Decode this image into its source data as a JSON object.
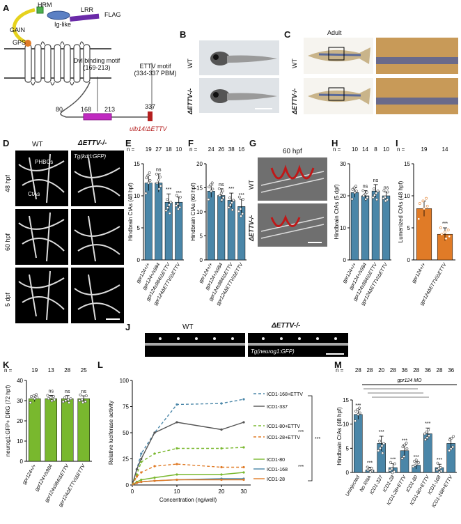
{
  "panels": {
    "A": "A",
    "B": "B",
    "C": "C",
    "D": "D",
    "E": "E",
    "F": "F",
    "G": "G",
    "H": "H",
    "I": "I",
    "J": "J",
    "K": "K",
    "L": "L",
    "M": "M"
  },
  "panel_a": {
    "hrm": "HRM",
    "lrr": "LRR",
    "ig_like": "Ig-like",
    "flag": "FLAG",
    "gain": "GAIN",
    "gps": "GPS",
    "dvl_motif": "Dvl binding motif",
    "dvl_range": "(169-213)",
    "ettv_motif": "ETTV motif",
    "ettv_range": "(334-337 PBM)",
    "pos_80": "80",
    "pos_168": "168",
    "pos_213": "213",
    "pos_337": "337",
    "allele": "ulb14/ΔETTV"
  },
  "panel_b": {
    "wt": "WT",
    "mut": "ΔETTV-/-"
  },
  "panel_c": {
    "adult": "Adult",
    "wt": "WT",
    "mut": "ΔETTV-/-"
  },
  "panel_d": {
    "wt": "WT",
    "mut": "ΔETTV-/-",
    "tg": "Tg(kdrl:GFP)",
    "phbcs": "PHBCs",
    "ctas": "CtAs",
    "rows": [
      "48 hpf",
      "60 hpf",
      "5 dpf"
    ]
  },
  "panel_g": {
    "title": "60 hpf",
    "wt": "WT",
    "mut": "ΔETTV-/-"
  },
  "panel_j": {
    "wt": "WT",
    "mut": "ΔETTV-/-",
    "tg": "Tg(neurog1:GFP)"
  },
  "colors": {
    "blue": "#4a86a8",
    "green": "#79b82e",
    "orange": "#e07b27",
    "gray": "#555555",
    "red": "#b51f1f",
    "purple": "#6a2aa8",
    "magenta": "#c02ac0"
  },
  "chart_data": [
    {
      "id": "E",
      "type": "bar",
      "ylabel": "Hindbrain CtAs (48 hpf)",
      "ylim": [
        0,
        15
      ],
      "yticks": [
        0,
        5,
        10,
        15
      ],
      "categories": [
        "gpr124+/+",
        "gpr124+/s984",
        "gpr124s984/ΔETTV",
        "gpr124ΔETTV/ΔETTV"
      ],
      "n": [
        "19",
        "27",
        "18",
        "10"
      ],
      "values": [
        12,
        12,
        9,
        9
      ],
      "errors": [
        1.2,
        1.4,
        1.3,
        0.8
      ],
      "sig": [
        "",
        "ns",
        "***",
        "***"
      ]
    },
    {
      "id": "F",
      "type": "bar",
      "ylabel": "Hindbrain CtAs (60 hpf)",
      "ylim": [
        0,
        20
      ],
      "yticks": [
        0,
        5,
        10,
        15,
        20
      ],
      "categories": [
        "gpr124+/+",
        "gpr124+/s984",
        "gpr124s984/ΔETTV",
        "gpr124ΔETTV/ΔETTV"
      ],
      "n": [
        "24",
        "26",
        "38",
        "16"
      ],
      "values": [
        14.3,
        13.4,
        12.4,
        11.1
      ],
      "errors": [
        1.3,
        1.4,
        1.5,
        1.5
      ],
      "sig": [
        "",
        "ns",
        "***",
        "***"
      ]
    },
    {
      "id": "H",
      "type": "bar",
      "ylabel": "Hindbrain CtAs (5 dpf)",
      "ylim": [
        0,
        30
      ],
      "yticks": [
        0,
        10,
        20,
        30
      ],
      "categories": [
        "gpr124+/+",
        "gpr124+/s984",
        "gpr124s984/ΔETTV",
        "gpr124ΔETTV/ΔETTV"
      ],
      "n": [
        "10",
        "14",
        "8",
        "10"
      ],
      "values": [
        21,
        20,
        21.5,
        20
      ],
      "errors": [
        1.5,
        1.6,
        2,
        1.2
      ],
      "sig": [
        "",
        "ns",
        "ns",
        "ns"
      ]
    },
    {
      "id": "I",
      "type": "bar",
      "ylabel": "Lumenized CtAs (48 hpf)",
      "ylim": [
        0,
        15
      ],
      "yticks": [
        0,
        5,
        10,
        15
      ],
      "categories": [
        "gpr124+/+",
        "gpr124ΔETTV/ΔETTV"
      ],
      "n": [
        "19",
        "14"
      ],
      "values": [
        8,
        4
      ],
      "errors": [
        1.2,
        1
      ],
      "sig": [
        "",
        "***"
      ]
    },
    {
      "id": "K",
      "type": "bar",
      "ylabel": "neurog1:GFP+ DRG (72 hpf)",
      "ylim": [
        0,
        40
      ],
      "yticks": [
        0,
        10,
        20,
        30,
        40
      ],
      "categories": [
        "gpr124+/+",
        "gpr124+/s984",
        "gpr124s984/ΔETTV",
        "gpr124ΔETTV/ΔETTV"
      ],
      "n": [
        "19",
        "13",
        "28",
        "25"
      ],
      "values": [
        31,
        31,
        31,
        31
      ],
      "errors": [
        1.5,
        1.6,
        1.5,
        1.4
      ],
      "sig": [
        "",
        "ns",
        "ns",
        "ns"
      ]
    },
    {
      "id": "L",
      "type": "line",
      "xlabel": "Concentration (ng/well)",
      "ylabel": "Relative luciferase activity",
      "xlim": [
        0,
        25
      ],
      "ylim": [
        0,
        100
      ],
      "xticks": [
        0,
        10,
        20,
        30
      ],
      "yticks": [
        0,
        25,
        50,
        75,
        100
      ],
      "x": [
        0,
        1,
        2,
        5,
        10,
        20,
        25
      ],
      "series": [
        {
          "name": "ICD1-168+ETTV",
          "style": "dashed",
          "color": "#4a86a8",
          "values": [
            0,
            15,
            30,
            50,
            77,
            78,
            82
          ]
        },
        {
          "name": "ICD1-337",
          "style": "solid",
          "color": "#555555",
          "values": [
            0,
            15,
            25,
            50,
            60,
            53,
            60
          ]
        },
        {
          "name": "ICD1-80+ETTV",
          "style": "dashed",
          "color": "#79b82e",
          "values": [
            0,
            10,
            22,
            30,
            35,
            35,
            36
          ]
        },
        {
          "name": "ICD1-28+ETTV",
          "style": "dashed",
          "color": "#e07b27",
          "values": [
            0,
            8,
            12,
            18,
            20,
            17,
            17
          ]
        },
        {
          "name": "ICD1-80",
          "style": "solid",
          "color": "#79b82e",
          "values": [
            0,
            3,
            5,
            7,
            10,
            10,
            12
          ]
        },
        {
          "name": "ICD1-168",
          "style": "solid",
          "color": "#4a86a8",
          "values": [
            0,
            2,
            3,
            4,
            5,
            6,
            6
          ]
        },
        {
          "name": "ICD1-28",
          "style": "solid",
          "color": "#e07b27",
          "values": [
            0,
            2,
            3,
            4,
            5,
            5,
            5
          ]
        }
      ],
      "sig": [
        "***",
        "***",
        "***"
      ]
    },
    {
      "id": "M",
      "type": "bar",
      "ylabel": "Hindbrain CtAs (48 hpf)",
      "ylim": [
        0,
        15
      ],
      "yticks": [
        0,
        5,
        10,
        15
      ],
      "header": "gpr124 MO",
      "categories": [
        "Uninjected",
        "No RNA",
        "ICD1-337",
        "ICD1-28",
        "ICD1-28+ETTV",
        "ICD1-80",
        "ICD1-80+ETTV",
        "ICD1-168",
        "ICD1-168+ETTV"
      ],
      "n": [
        "28",
        "28",
        "20",
        "28",
        "36",
        "28",
        "36",
        "28",
        "36"
      ],
      "values": [
        12,
        0.5,
        6,
        1,
        4.5,
        1.5,
        8,
        1,
        6
      ],
      "errors": [
        1,
        0.6,
        1.5,
        0.8,
        1.2,
        0.8,
        1.2,
        0.7,
        1.1
      ],
      "sig": [
        "***",
        "***",
        "***",
        "***",
        "***",
        "***",
        "***",
        "***"
      ]
    }
  ]
}
